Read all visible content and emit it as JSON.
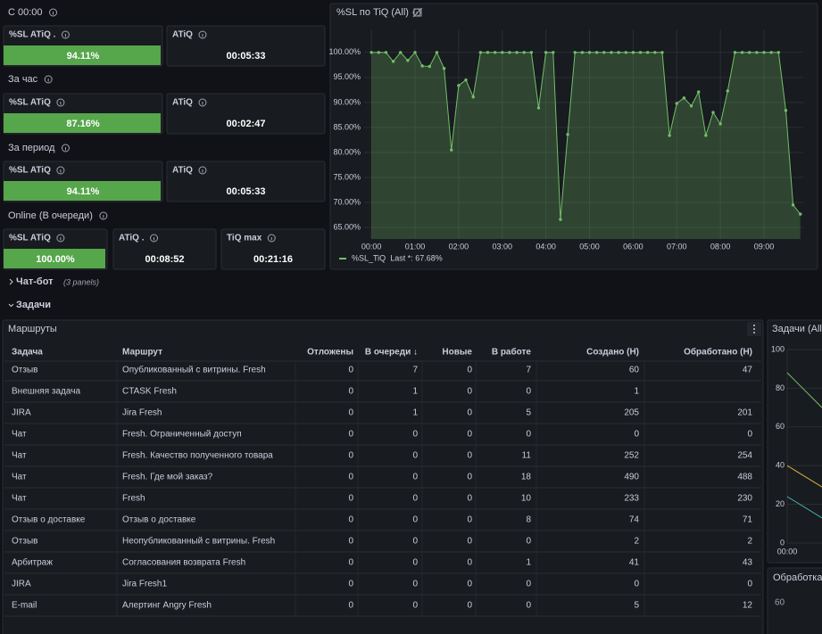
{
  "stats": {
    "sections": [
      {
        "title": "С 00:00",
        "panels": [
          {
            "label": "%SL ATiQ .",
            "value": "94.11%"
          },
          {
            "label": "ATiQ",
            "value": "00:05:33"
          }
        ]
      },
      {
        "title": "За час",
        "panels": [
          {
            "label": "%SL ATiQ",
            "value": "87.16%"
          },
          {
            "label": "ATiQ",
            "value": "00:02:47"
          }
        ]
      },
      {
        "title": "За период",
        "panels": [
          {
            "label": "%SL ATiQ",
            "value": "94.11%"
          },
          {
            "label": "ATiQ",
            "value": "00:05:33"
          }
        ]
      },
      {
        "title": "Online (В очереди)",
        "panels": [
          {
            "label": "%SL ATiQ",
            "value": "100.00%"
          },
          {
            "label": "ATiQ .",
            "value": "00:08:52"
          },
          {
            "label": "TiQ max",
            "value": "00:21:16"
          }
        ]
      }
    ]
  },
  "chart_data": {
    "type": "line",
    "title": "%SL по TiQ (All)",
    "x": [
      0,
      10,
      20,
      30,
      40,
      50,
      60,
      70,
      80,
      90,
      100,
      110,
      120,
      130,
      140,
      150,
      160,
      170,
      180,
      190,
      200,
      210,
      220,
      230,
      240,
      250,
      260,
      270,
      280,
      290,
      300,
      310,
      320,
      330,
      340,
      350,
      360,
      370,
      380,
      390,
      400,
      410,
      420,
      430,
      440,
      450,
      460,
      470,
      480,
      490,
      500,
      510,
      520,
      530,
      540,
      550,
      560,
      570,
      580,
      590
    ],
    "series": [
      {
        "name": "%SL_TiQ",
        "color": "#73bf69",
        "values": [
          100,
          100,
          100,
          98.2,
          100,
          98.4,
          100,
          97.3,
          97.2,
          100,
          96.8,
          80.5,
          93.4,
          94.5,
          91.1,
          100,
          100,
          100,
          100,
          100,
          100,
          100,
          100,
          88.9,
          100,
          100,
          66.6,
          83.6,
          100,
          100,
          100,
          100,
          100,
          100,
          100,
          100,
          100,
          100,
          100,
          100,
          100,
          83.4,
          89.8,
          90.9,
          89.3,
          92.1,
          83.4,
          88.0,
          85.7,
          92.3,
          100,
          100,
          100,
          100,
          100,
          100,
          100,
          88.4,
          69.5,
          67.68
        ]
      }
    ],
    "legend_value": "Last *: 67.68%",
    "xlim": [
      -10,
      594
    ],
    "ylim": [
      62.7,
      104.6
    ],
    "xticks": [
      {
        "value": 0,
        "label": "00:00"
      },
      {
        "value": 60,
        "label": "01:00"
      },
      {
        "value": 120,
        "label": "02:00"
      },
      {
        "value": 180,
        "label": "03:00"
      },
      {
        "value": 240,
        "label": "04:00"
      },
      {
        "value": 300,
        "label": "05:00"
      },
      {
        "value": 360,
        "label": "06:00"
      },
      {
        "value": 420,
        "label": "07:00"
      },
      {
        "value": 480,
        "label": "08:00"
      },
      {
        "value": 540,
        "label": "09:00"
      }
    ],
    "yticks": [
      {
        "value": 65,
        "label": "65.00%"
      },
      {
        "value": 70,
        "label": "70.00%"
      },
      {
        "value": 75,
        "label": "75.00%"
      },
      {
        "value": 80,
        "label": "80.00%"
      },
      {
        "value": 85,
        "label": "85.00%"
      },
      {
        "value": 90,
        "label": "90.00%"
      },
      {
        "value": 95,
        "label": "95.00%"
      },
      {
        "value": 100,
        "label": "100.00%"
      }
    ],
    "grid": true
  },
  "rows": [
    {
      "title": "Чат-бот",
      "note": "(3 panels)"
    },
    {
      "title": "Задачи"
    }
  ],
  "table": {
    "title": "Маршруты",
    "columns": [
      "Задача",
      "Маршрут",
      "Отложены",
      "В очереди ↓",
      "Новые",
      "В работе",
      "Создано (Н)",
      "Обработано (Н)"
    ],
    "rows": [
      [
        "Отзыв",
        "Опубликованный с витрины. Fresh",
        0,
        7,
        0,
        7,
        60,
        47
      ],
      [
        "Внешняя задача",
        "CTASK Fresh",
        0,
        1,
        0,
        0,
        1,
        null
      ],
      [
        "JIRA",
        "Jira Fresh",
        0,
        1,
        0,
        5,
        205,
        201
      ],
      [
        "Чат",
        "Fresh. Ограниченный доступ",
        0,
        0,
        0,
        0,
        0,
        0
      ],
      [
        "Чат",
        "Fresh. Качество полученного товара",
        0,
        0,
        0,
        11,
        252,
        254
      ],
      [
        "Чат",
        "Fresh. Где мой заказ?",
        0,
        0,
        0,
        18,
        490,
        488
      ],
      [
        "Чат",
        "Fresh",
        0,
        0,
        0,
        10,
        233,
        230
      ],
      [
        "Отзыв о доставке",
        "Отзыв о доставке",
        0,
        0,
        0,
        8,
        74,
        71
      ],
      [
        "Отзыв",
        "Неопубликованный с витрины. Fresh",
        0,
        0,
        0,
        0,
        2,
        2
      ],
      [
        "Арбитраж",
        "Согласования возврата Fresh",
        0,
        0,
        0,
        1,
        41,
        43
      ],
      [
        "JIRA",
        "Jira Fresh1",
        0,
        0,
        0,
        0,
        0,
        0
      ],
      [
        "E-mail",
        "Алертинг Angry Fresh",
        0,
        0,
        0,
        0,
        5,
        12
      ]
    ]
  },
  "side_chart": {
    "type": "line",
    "title": "Задачи (All)",
    "x": [
      0,
      10
    ],
    "series": [
      {
        "color": "#73bf69",
        "values": [
          88,
          70
        ]
      },
      {
        "color": "#d6b13a",
        "values": [
          40,
          29
        ]
      },
      {
        "color": "#3fb1b0",
        "values": [
          24,
          13
        ]
      }
    ],
    "xlim": [
      0,
      20
    ],
    "ylim": [
      0,
      100
    ],
    "yticks": [
      0,
      20,
      40,
      60,
      80,
      100
    ],
    "xticks": [
      {
        "value": 0,
        "label": "00:00"
      }
    ]
  },
  "side_panel2": {
    "title": "Обработка",
    "yticks": [
      60
    ]
  }
}
